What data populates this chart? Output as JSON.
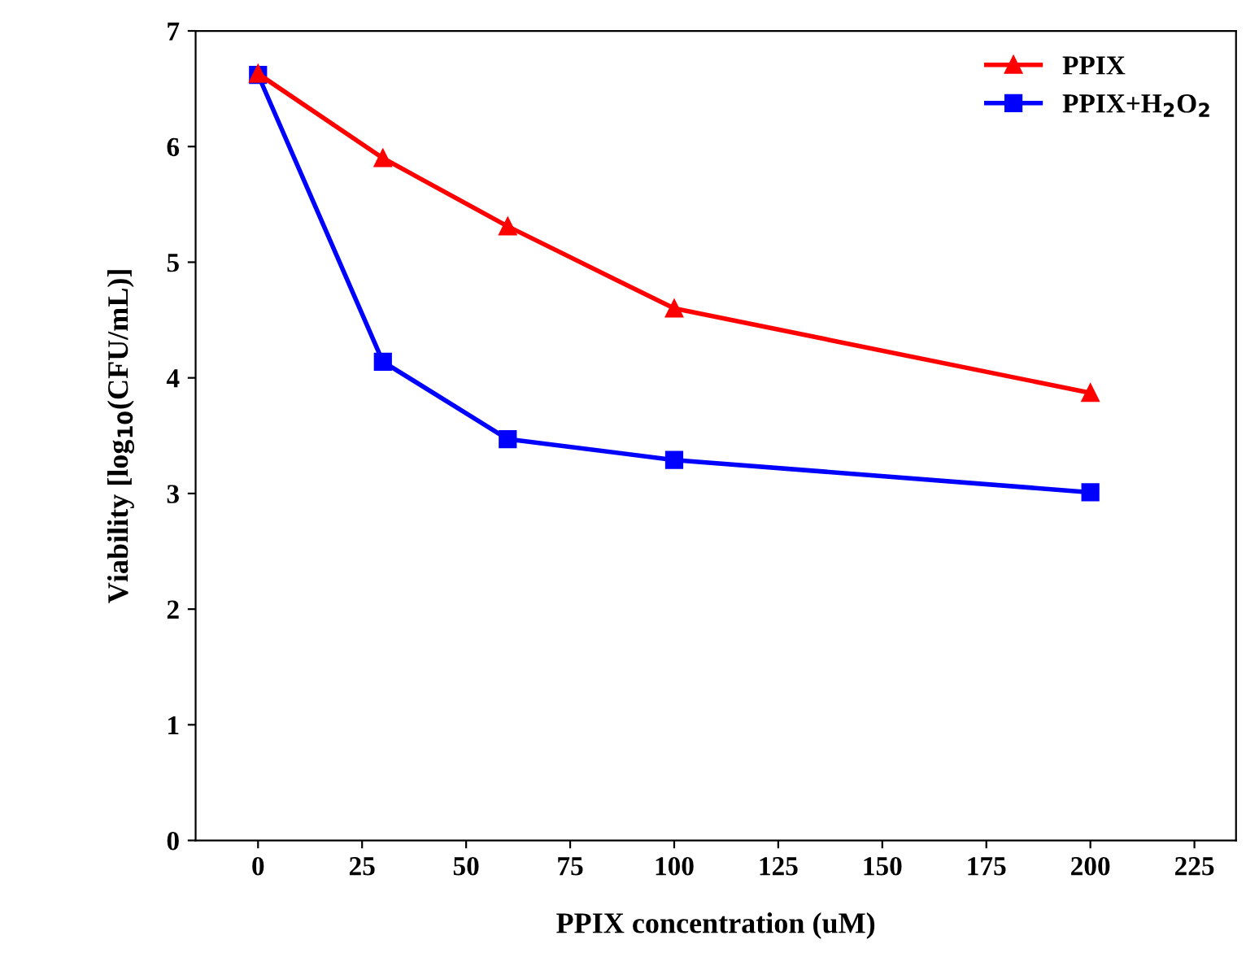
{
  "chart_data": {
    "type": "line",
    "xlabel": "PPIX concentration (uM)",
    "ylabel": "Viability [log$_{10}$(CFU/mL)]",
    "x": [
      0,
      30,
      60,
      100,
      200
    ],
    "series": [
      {
        "name": "PPIX",
        "color": "#ff0000",
        "marker": "triangle",
        "values": [
          6.63,
          5.9,
          5.31,
          4.6,
          3.87
        ]
      },
      {
        "name": "PPIX+H$_{2}$O$_{2}$",
        "color": "#0000ff",
        "marker": "square",
        "values": [
          6.62,
          4.14,
          3.47,
          3.29,
          3.01
        ]
      }
    ],
    "xlim": [
      -15,
      235
    ],
    "xticks": [
      0,
      25,
      50,
      75,
      100,
      125,
      150,
      175,
      200,
      225
    ],
    "ylim": [
      0,
      7
    ],
    "yticks": [
      0,
      1,
      2,
      3,
      4,
      5,
      6,
      7
    ],
    "legend": "top right",
    "grid": false,
    "line_style": "solid"
  }
}
